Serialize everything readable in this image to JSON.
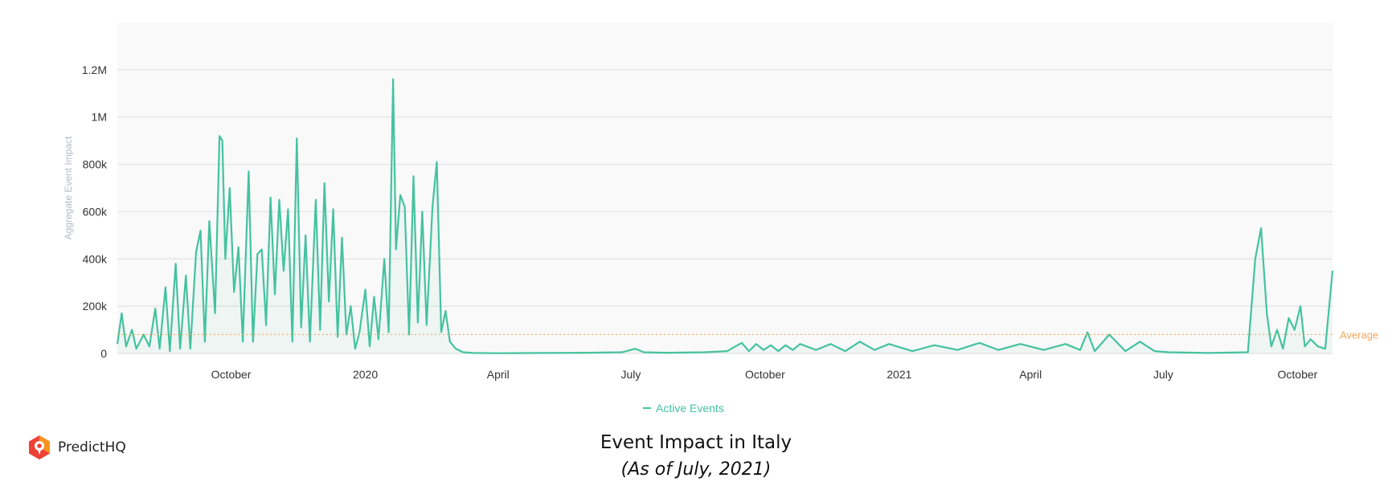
{
  "brand": {
    "name": "PredictHQ",
    "logo_colors": [
      "#f7931e",
      "#ef4136"
    ]
  },
  "caption": {
    "title": "Event Impact in Italy",
    "subtitle": "(As of July, 2021)"
  },
  "chart_data": {
    "type": "line",
    "title": "",
    "ylabel": "Aggregate Event Impact",
    "xlabel": "",
    "ylim": [
      0,
      1400000
    ],
    "x_range": [
      "2019-07-15",
      "2021-10-25"
    ],
    "x_ticks": [
      {
        "label": "October",
        "date": "2019-10-01"
      },
      {
        "label": "2020",
        "date": "2020-01-01"
      },
      {
        "label": "April",
        "date": "2020-04-01"
      },
      {
        "label": "July",
        "date": "2020-07-01"
      },
      {
        "label": "October",
        "date": "2020-10-01"
      },
      {
        "label": "2021",
        "date": "2021-01-01"
      },
      {
        "label": "April",
        "date": "2021-04-01"
      },
      {
        "label": "July",
        "date": "2021-07-01"
      },
      {
        "label": "October",
        "date": "2021-10-01"
      }
    ],
    "y_ticks": [
      {
        "label": "0",
        "value": 0
      },
      {
        "label": "200k",
        "value": 200000
      },
      {
        "label": "400k",
        "value": 400000
      },
      {
        "label": "600k",
        "value": 600000
      },
      {
        "label": "800k",
        "value": 800000
      },
      {
        "label": "1M",
        "value": 1000000
      },
      {
        "label": "1.2M",
        "value": 1200000
      }
    ],
    "grid": true,
    "legend_position": "bottom",
    "average": {
      "label": "Average",
      "value": 80000,
      "color": "#f5a860"
    },
    "series": [
      {
        "name": "Active Events",
        "color": "#45c2a0",
        "points": [
          [
            "2019-07-15",
            40000
          ],
          [
            "2019-07-18",
            170000
          ],
          [
            "2019-07-21",
            30000
          ],
          [
            "2019-07-25",
            100000
          ],
          [
            "2019-07-28",
            20000
          ],
          [
            "2019-08-02",
            80000
          ],
          [
            "2019-08-06",
            30000
          ],
          [
            "2019-08-10",
            190000
          ],
          [
            "2019-08-13",
            20000
          ],
          [
            "2019-08-17",
            280000
          ],
          [
            "2019-08-20",
            10000
          ],
          [
            "2019-08-24",
            380000
          ],
          [
            "2019-08-27",
            20000
          ],
          [
            "2019-08-31",
            330000
          ],
          [
            "2019-09-03",
            20000
          ],
          [
            "2019-09-07",
            430000
          ],
          [
            "2019-09-10",
            520000
          ],
          [
            "2019-09-13",
            50000
          ],
          [
            "2019-09-16",
            560000
          ],
          [
            "2019-09-20",
            170000
          ],
          [
            "2019-09-23",
            920000
          ],
          [
            "2019-09-25",
            900000
          ],
          [
            "2019-09-27",
            400000
          ],
          [
            "2019-09-30",
            700000
          ],
          [
            "2019-10-03",
            260000
          ],
          [
            "2019-10-06",
            450000
          ],
          [
            "2019-10-09",
            50000
          ],
          [
            "2019-10-13",
            770000
          ],
          [
            "2019-10-16",
            50000
          ],
          [
            "2019-10-19",
            420000
          ],
          [
            "2019-10-22",
            440000
          ],
          [
            "2019-10-25",
            120000
          ],
          [
            "2019-10-28",
            660000
          ],
          [
            "2019-10-31",
            250000
          ],
          [
            "2019-11-03",
            650000
          ],
          [
            "2019-11-06",
            350000
          ],
          [
            "2019-11-09",
            610000
          ],
          [
            "2019-11-12",
            50000
          ],
          [
            "2019-11-15",
            910000
          ],
          [
            "2019-11-18",
            110000
          ],
          [
            "2019-11-21",
            500000
          ],
          [
            "2019-11-24",
            50000
          ],
          [
            "2019-11-28",
            650000
          ],
          [
            "2019-12-01",
            100000
          ],
          [
            "2019-12-04",
            720000
          ],
          [
            "2019-12-07",
            220000
          ],
          [
            "2019-12-10",
            610000
          ],
          [
            "2019-12-13",
            70000
          ],
          [
            "2019-12-16",
            490000
          ],
          [
            "2019-12-19",
            80000
          ],
          [
            "2019-12-22",
            200000
          ],
          [
            "2019-12-25",
            20000
          ],
          [
            "2019-12-28",
            90000
          ],
          [
            "2020-01-01",
            270000
          ],
          [
            "2020-01-04",
            30000
          ],
          [
            "2020-01-07",
            240000
          ],
          [
            "2020-01-10",
            60000
          ],
          [
            "2020-01-14",
            400000
          ],
          [
            "2020-01-17",
            90000
          ],
          [
            "2020-01-20",
            1160000
          ],
          [
            "2020-01-22",
            440000
          ],
          [
            "2020-01-25",
            670000
          ],
          [
            "2020-01-28",
            620000
          ],
          [
            "2020-01-31",
            80000
          ],
          [
            "2020-02-03",
            750000
          ],
          [
            "2020-02-06",
            130000
          ],
          [
            "2020-02-09",
            600000
          ],
          [
            "2020-02-12",
            120000
          ],
          [
            "2020-02-16",
            620000
          ],
          [
            "2020-02-19",
            810000
          ],
          [
            "2020-02-22",
            90000
          ],
          [
            "2020-02-25",
            180000
          ],
          [
            "2020-02-28",
            50000
          ],
          [
            "2020-03-03",
            20000
          ],
          [
            "2020-03-08",
            5000
          ],
          [
            "2020-03-15",
            2000
          ],
          [
            "2020-04-01",
            1000
          ],
          [
            "2020-05-01",
            2000
          ],
          [
            "2020-06-01",
            3000
          ],
          [
            "2020-06-25",
            5000
          ],
          [
            "2020-07-04",
            20000
          ],
          [
            "2020-07-10",
            5000
          ],
          [
            "2020-07-25",
            3000
          ],
          [
            "2020-08-20",
            5000
          ],
          [
            "2020-09-05",
            10000
          ],
          [
            "2020-09-15",
            45000
          ],
          [
            "2020-09-20",
            10000
          ],
          [
            "2020-09-25",
            40000
          ],
          [
            "2020-09-30",
            15000
          ],
          [
            "2020-10-05",
            35000
          ],
          [
            "2020-10-10",
            10000
          ],
          [
            "2020-10-15",
            35000
          ],
          [
            "2020-10-20",
            15000
          ],
          [
            "2020-10-25",
            40000
          ],
          [
            "2020-11-05",
            15000
          ],
          [
            "2020-11-15",
            40000
          ],
          [
            "2020-11-25",
            10000
          ],
          [
            "2020-12-05",
            50000
          ],
          [
            "2020-12-15",
            15000
          ],
          [
            "2020-12-25",
            40000
          ],
          [
            "2021-01-10",
            10000
          ],
          [
            "2021-01-25",
            35000
          ],
          [
            "2021-02-10",
            15000
          ],
          [
            "2021-02-25",
            45000
          ],
          [
            "2021-03-10",
            15000
          ],
          [
            "2021-03-25",
            40000
          ],
          [
            "2021-04-10",
            15000
          ],
          [
            "2021-04-25",
            40000
          ],
          [
            "2021-05-05",
            15000
          ],
          [
            "2021-05-10",
            90000
          ],
          [
            "2021-05-15",
            10000
          ],
          [
            "2021-05-25",
            80000
          ],
          [
            "2021-06-05",
            10000
          ],
          [
            "2021-06-15",
            50000
          ],
          [
            "2021-06-25",
            10000
          ],
          [
            "2021-07-05",
            5000
          ],
          [
            "2021-08-01",
            2000
          ],
          [
            "2021-08-28",
            5000
          ],
          [
            "2021-09-02",
            400000
          ],
          [
            "2021-09-06",
            530000
          ],
          [
            "2021-09-10",
            170000
          ],
          [
            "2021-09-13",
            30000
          ],
          [
            "2021-09-17",
            100000
          ],
          [
            "2021-09-21",
            20000
          ],
          [
            "2021-09-25",
            150000
          ],
          [
            "2021-09-29",
            100000
          ],
          [
            "2021-10-03",
            200000
          ],
          [
            "2021-10-06",
            30000
          ],
          [
            "2021-10-10",
            60000
          ],
          [
            "2021-10-15",
            30000
          ],
          [
            "2021-10-20",
            20000
          ],
          [
            "2021-10-25",
            350000
          ]
        ]
      }
    ]
  }
}
